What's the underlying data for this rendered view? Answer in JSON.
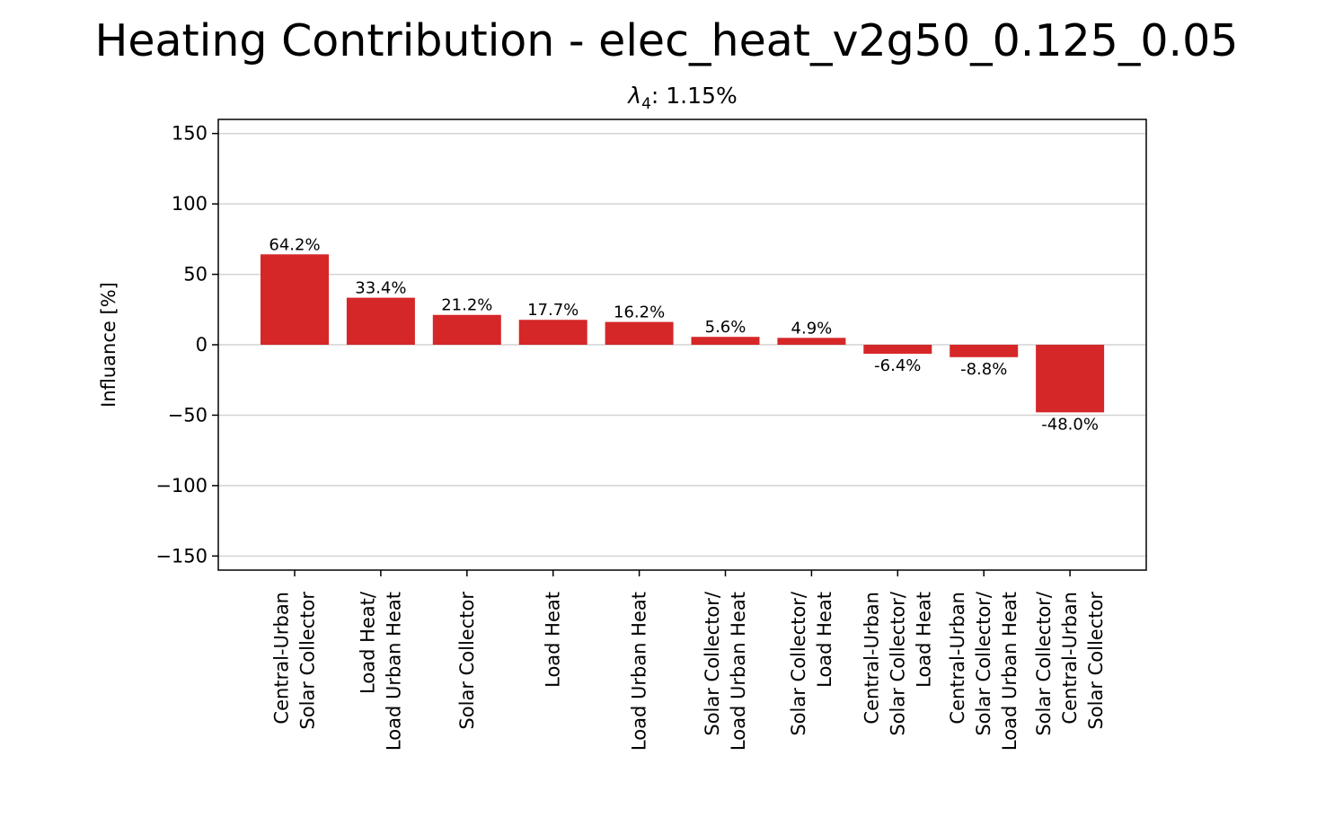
{
  "chart_data": {
    "type": "bar",
    "title": "Heating Contribution - elec_heat_v2g50_0.125_0.05",
    "subtitle_symbol": "λ",
    "subtitle_subscript": "4",
    "subtitle_value": ": 1.15%",
    "xlabel": "",
    "ylabel": "Influance [%]",
    "ylim": [
      -160,
      160
    ],
    "yticks": [
      150,
      100,
      50,
      0,
      -50,
      -100,
      -150
    ],
    "ytick_labels": [
      "150",
      "100",
      "50",
      "0",
      "−50",
      "−100",
      "−150"
    ],
    "grid": "horizontal",
    "bar_color": "#d62728",
    "categories": [
      [
        "Central-Urban",
        "Solar Collector"
      ],
      [
        "Load Heat/",
        "Load Urban Heat"
      ],
      [
        "Solar Collector"
      ],
      [
        "Load Heat"
      ],
      [
        "Load Urban Heat"
      ],
      [
        "Solar Collector/",
        "Load Urban Heat"
      ],
      [
        "Solar Collector/",
        "Load Heat"
      ],
      [
        "Central-Urban",
        "Solar Collector/",
        "Load Heat"
      ],
      [
        "Central-Urban",
        "Solar Collector/",
        "Load Urban Heat"
      ],
      [
        "Solar Collector/",
        "Central-Urban",
        "Solar Collector"
      ]
    ],
    "values": [
      64.2,
      33.4,
      21.2,
      17.7,
      16.2,
      5.6,
      4.9,
      -6.4,
      -8.8,
      -48.0
    ],
    "value_labels": [
      "64.2%",
      "33.4%",
      "21.2%",
      "17.7%",
      "16.2%",
      "5.6%",
      "4.9%",
      "-6.4%",
      "-8.8%",
      "-48.0%"
    ]
  }
}
